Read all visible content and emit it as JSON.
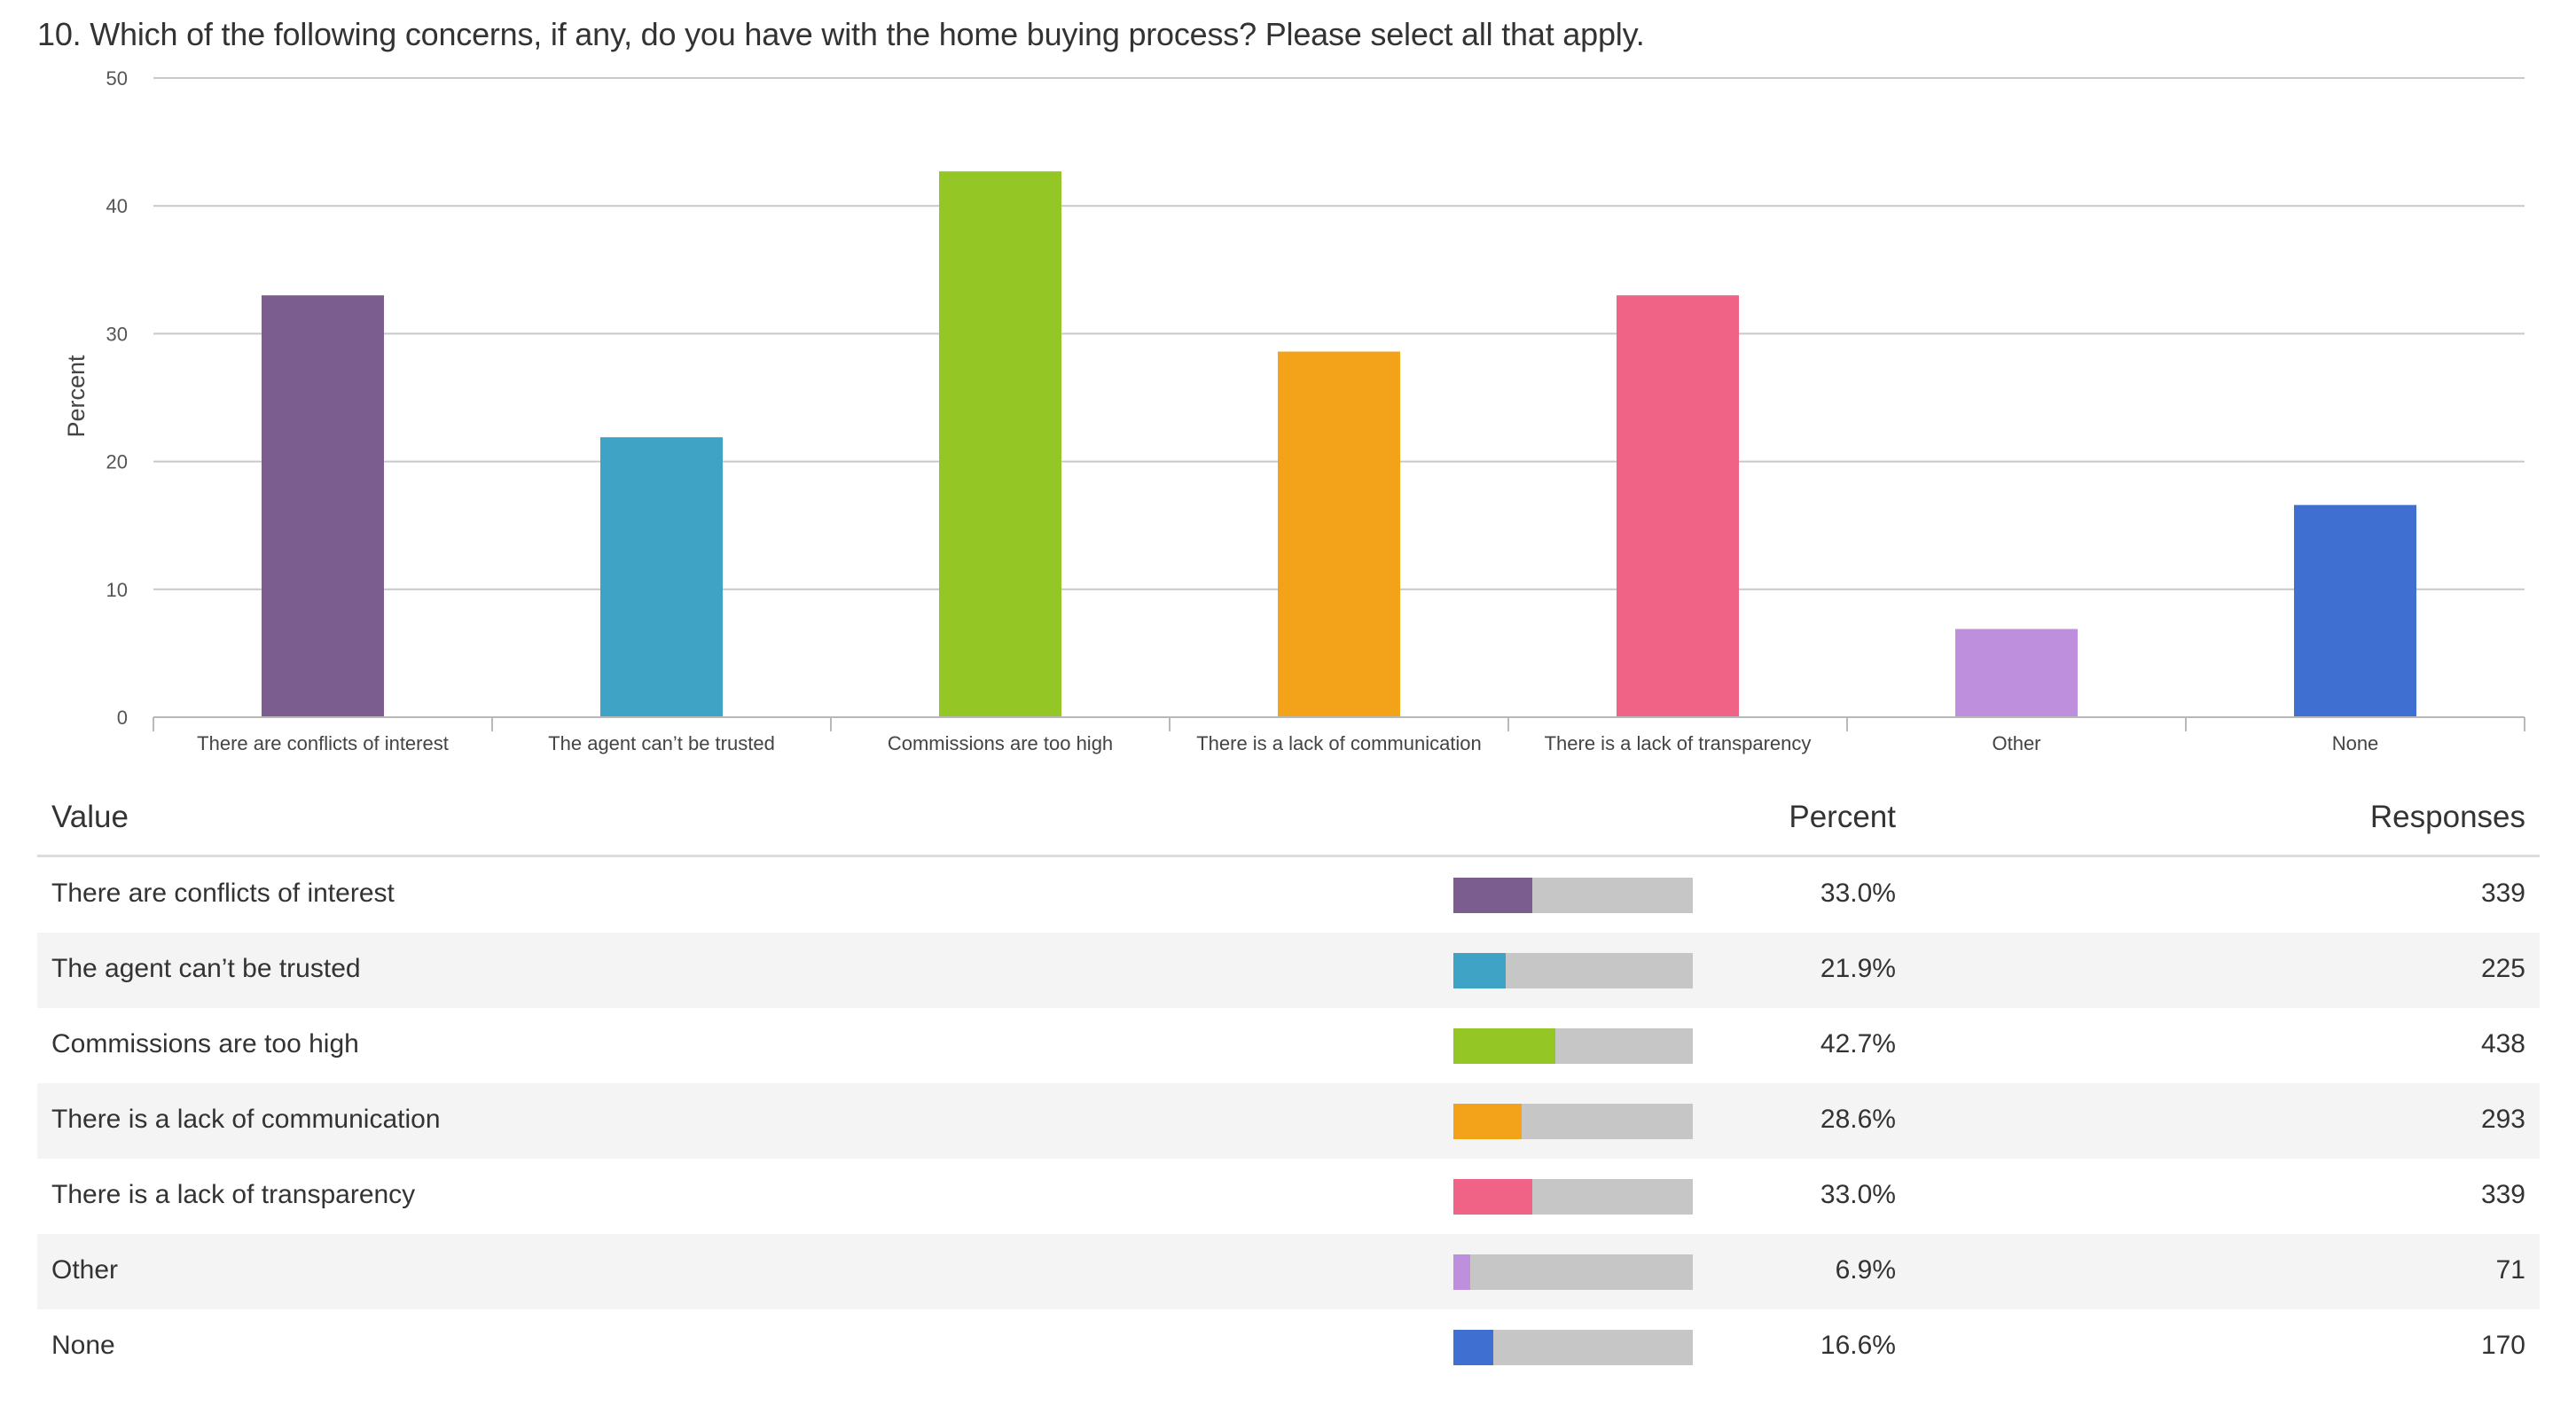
{
  "question": "10. Which of the following concerns, if any, do you have with the home buying process? Please select all that apply.",
  "chart_data": {
    "type": "bar",
    "ylabel": "Percent",
    "xlabel": "",
    "ylim": [
      0,
      50
    ],
    "yticks": [
      0,
      10,
      20,
      30,
      40,
      50
    ],
    "grid": true,
    "categories": [
      "There are conflicts of interest",
      "The agent can’t be trusted",
      "Commissions are too high",
      "There is a lack of communication",
      "There is a lack of transparency",
      "Other",
      "None"
    ],
    "values": [
      33.0,
      21.9,
      42.7,
      28.6,
      33.0,
      6.9,
      16.6
    ],
    "colors": [
      "#7b5e8f",
      "#3ea3c4",
      "#94c726",
      "#f3a31a",
      "#f06386",
      "#be8fdc",
      "#3f6fd1"
    ]
  },
  "table": {
    "headers": {
      "value": "Value",
      "percent": "Percent",
      "responses": "Responses"
    },
    "rows": [
      {
        "label": "There are conflicts of interest",
        "percent": "33.0%",
        "responses": "339",
        "fraction": 0.33,
        "color": "#7b5e8f"
      },
      {
        "label": "The agent can’t be trusted",
        "percent": "21.9%",
        "responses": "225",
        "fraction": 0.219,
        "color": "#3ea3c4"
      },
      {
        "label": "Commissions are too high",
        "percent": "42.7%",
        "responses": "438",
        "fraction": 0.427,
        "color": "#94c726"
      },
      {
        "label": "There is a lack of communication",
        "percent": "28.6%",
        "responses": "293",
        "fraction": 0.286,
        "color": "#f3a31a"
      },
      {
        "label": "There is a lack of transparency",
        "percent": "33.0%",
        "responses": "339",
        "fraction": 0.33,
        "color": "#f06386"
      },
      {
        "label": "Other",
        "percent": "6.9%",
        "responses": "71",
        "fraction": 0.069,
        "color": "#be8fdc"
      },
      {
        "label": "None",
        "percent": "16.6%",
        "responses": "170",
        "fraction": 0.166,
        "color": "#3f6fd1"
      }
    ]
  }
}
